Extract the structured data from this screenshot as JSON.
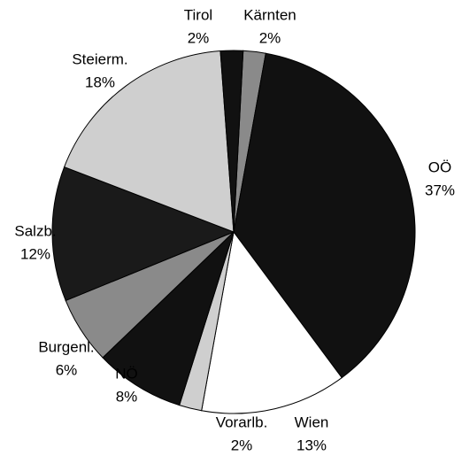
{
  "chart_data": {
    "type": "pie",
    "categories": [
      "Kärnten",
      "OÖ",
      "Wien",
      "Vorarlb.",
      "NÖ",
      "Burgenl.",
      "Salzb.",
      "Steierm.",
      "Tirol"
    ],
    "values": [
      2,
      37,
      13,
      2,
      8,
      6,
      12,
      18,
      2
    ],
    "value_labels": [
      "2%",
      "37%",
      "13%",
      "2%",
      "8%",
      "6%",
      "12%",
      "18%",
      "2%"
    ],
    "colors": [
      "#8a8a8a",
      "#111111",
      "#ffffff",
      "#cfcfcf",
      "#111111",
      "#8a8a8a",
      "#1a1a1a",
      "#cfcfcf",
      "#111111"
    ]
  }
}
